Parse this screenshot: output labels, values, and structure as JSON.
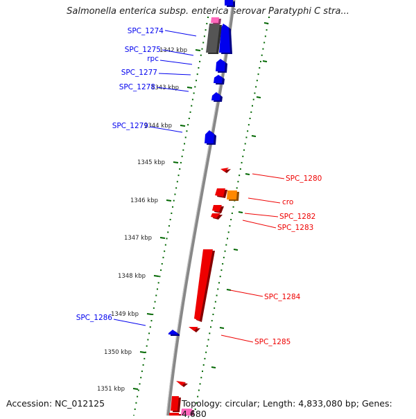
{
  "title": "Salmonella enterica subsp. enterica serovar Paratyphi C stra...",
  "footer": {
    "accession_label": "Accession:",
    "accession_value": "NC_012125",
    "topology_label": "Topology:",
    "topology_value": "circular;",
    "length_label": "Length:",
    "length_value": "4,833,080 bp;",
    "genes_label": "Genes:",
    "genes_value": "4,680"
  },
  "colors": {
    "forward_gene": "#0000ee",
    "reverse_gene": "#ee0000",
    "highlight_gene": "#ff8800",
    "rna_gene": "#555555",
    "misc_feature": "#ff66bb",
    "tick": "#006600",
    "backbone": "#888888"
  },
  "ticks": [
    {
      "label": "1342 kbp"
    },
    {
      "label": "1343 kbp"
    },
    {
      "label": "1344 kbp"
    },
    {
      "label": "1345 kbp"
    },
    {
      "label": "1346 kbp"
    },
    {
      "label": "1347 kbp"
    },
    {
      "label": "1348 kbp"
    },
    {
      "label": "1349 kbp"
    },
    {
      "label": "1350 kbp"
    },
    {
      "label": "1351 kbp"
    }
  ],
  "genes_forward": [
    {
      "label": "SPC_1274"
    },
    {
      "label": "SPC_1275"
    },
    {
      "label": "rpc"
    },
    {
      "label": "SPC_1277"
    },
    {
      "label": "SPC_1278"
    },
    {
      "label": "SPC_1279"
    },
    {
      "label": "SPC_1286"
    }
  ],
  "genes_reverse": [
    {
      "label": "SPC_1280"
    },
    {
      "label": "cro"
    },
    {
      "label": "SPC_1282"
    },
    {
      "label": "SPC_1283"
    },
    {
      "label": "SPC_1284"
    },
    {
      "label": "SPC_1285"
    }
  ]
}
